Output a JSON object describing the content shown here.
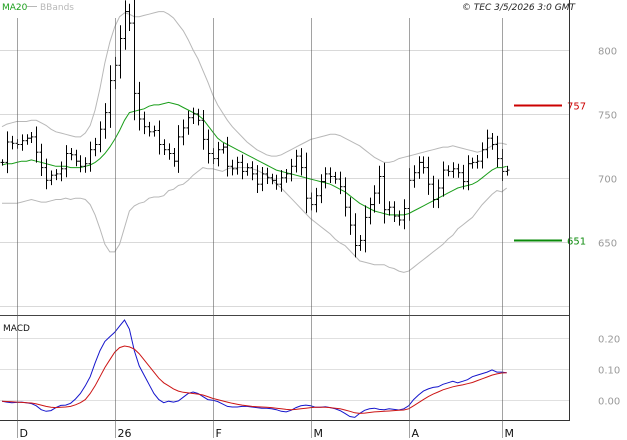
{
  "legend": {
    "ma_label": "MA20",
    "bb_label": "BBands",
    "ma_color": "#1a9e1a",
    "bb_color": "#b8b8b8"
  },
  "header_info": "© TEC 3/5/2026 3:0 GMT",
  "macd_label": "MACD",
  "chart_data": [
    {
      "type": "candlestick",
      "title": "",
      "ylim": [
        595,
        825
      ],
      "y_ticks": [
        "800",
        "750",
        "700",
        "650"
      ],
      "y_tick_values": [
        800,
        750,
        700,
        650
      ],
      "x_ticks": [
        "D",
        "26",
        "F",
        "M",
        "A",
        "M"
      ],
      "x_tick_index": [
        4,
        24,
        44,
        64,
        84,
        103
      ],
      "grid": true,
      "levels": [
        {
          "label": "757",
          "value": 757,
          "color": "#cc0000"
        },
        {
          "label": "651",
          "value": 651,
          "color": "#0a8a0a"
        }
      ],
      "series": [
        {
          "name": "Price",
          "values": [
            712,
            728,
            727,
            726,
            729,
            731,
            732,
            720,
            708,
            698,
            702,
            703,
            707,
            719,
            718,
            713,
            709,
            711,
            722,
            726,
            738,
            751,
            776,
            788,
            809,
            830,
            821,
            766,
            746,
            740,
            736,
            737,
            726,
            722,
            719,
            713,
            732,
            739,
            747,
            750,
            745,
            730,
            719,
            715,
            722,
            724,
            709,
            707,
            712,
            705,
            708,
            703,
            695,
            703,
            700,
            698,
            695,
            700,
            703,
            709,
            717,
            708,
            684,
            679,
            686,
            697,
            703,
            701,
            699,
            693,
            677,
            663,
            647,
            651,
            669,
            679,
            688,
            701,
            675,
            677,
            670,
            667,
            676,
            698,
            704,
            712,
            708,
            695,
            683,
            692,
            706,
            705,
            707,
            704,
            697,
            711,
            712,
            713,
            722,
            731,
            726,
            715,
            705,
            706
          ]
        },
        {
          "name": "MA20",
          "values": [
            710,
            711,
            711,
            712,
            713,
            713,
            714,
            713,
            712,
            711,
            710,
            709,
            709,
            709,
            708,
            708,
            708,
            709,
            710,
            712,
            715,
            719,
            724,
            730,
            737,
            745,
            751,
            752,
            753,
            754,
            756,
            757,
            757,
            758,
            759,
            758,
            757,
            755,
            753,
            751,
            749,
            746,
            741,
            736,
            731,
            728,
            726,
            724,
            722,
            720,
            718,
            716,
            714,
            712,
            710,
            708,
            706,
            705,
            704,
            703,
            702,
            701,
            700,
            699,
            698,
            697,
            696,
            695,
            693,
            691,
            689,
            686,
            683,
            680,
            678,
            676,
            674,
            673,
            672,
            671,
            671,
            671,
            671,
            672,
            674,
            676,
            678,
            680,
            682,
            684,
            686,
            688,
            690,
            692,
            693,
            694,
            695,
            697,
            700,
            703,
            706,
            708,
            708,
            709
          ]
        },
        {
          "name": "BB Upper",
          "values": [
            740,
            742,
            743,
            744,
            744,
            744,
            745,
            745,
            743,
            741,
            738,
            736,
            735,
            734,
            733,
            732,
            732,
            735,
            741,
            753,
            770,
            790,
            806,
            818,
            826,
            829,
            828,
            826,
            826,
            827,
            828,
            829,
            830,
            830,
            828,
            825,
            820,
            815,
            808,
            800,
            793,
            784,
            775,
            765,
            757,
            751,
            745,
            740,
            736,
            732,
            728,
            725,
            722,
            720,
            718,
            717,
            717,
            718,
            720,
            722,
            724,
            726,
            728,
            730,
            731,
            732,
            733,
            734,
            734,
            733,
            731,
            729,
            727,
            725,
            722,
            719,
            716,
            714,
            712,
            712,
            713,
            715,
            716,
            717,
            718,
            719,
            720,
            721,
            722,
            723,
            724,
            724,
            725,
            724,
            723,
            722,
            721,
            720,
            721,
            723,
            725,
            727,
            727,
            726
          ]
        },
        {
          "name": "BB Lower",
          "values": [
            680,
            680,
            680,
            680,
            681,
            682,
            683,
            682,
            681,
            681,
            682,
            683,
            683,
            684,
            683,
            684,
            684,
            683,
            679,
            671,
            660,
            648,
            642,
            642,
            648,
            661,
            674,
            678,
            680,
            681,
            684,
            685,
            685,
            686,
            690,
            691,
            694,
            695,
            698,
            702,
            705,
            708,
            707,
            707,
            706,
            705,
            707,
            708,
            708,
            708,
            708,
            707,
            706,
            704,
            702,
            699,
            695,
            692,
            688,
            684,
            680,
            676,
            672,
            668,
            665,
            662,
            659,
            656,
            652,
            649,
            647,
            643,
            639,
            635,
            634,
            633,
            632,
            632,
            632,
            630,
            629,
            627,
            626,
            627,
            630,
            633,
            636,
            639,
            642,
            645,
            648,
            652,
            655,
            660,
            663,
            666,
            669,
            674,
            679,
            683,
            687,
            690,
            689,
            692
          ]
        }
      ]
    },
    {
      "type": "line",
      "title": "",
      "ylim": [
        -0.06,
        0.26
      ],
      "y_ticks": [
        "0.20",
        "0.10",
        "0.00"
      ],
      "y_tick_values": [
        0.2,
        0.1,
        0.0
      ],
      "grid": true,
      "series": [
        {
          "name": "MACD",
          "color": "#1515cc",
          "values": [
            -0.005,
            -0.008,
            -0.01,
            -0.009,
            -0.008,
            -0.01,
            -0.013,
            -0.02,
            -0.033,
            -0.038,
            -0.036,
            -0.026,
            -0.019,
            -0.018,
            -0.012,
            0.002,
            0.02,
            0.045,
            0.075,
            0.12,
            0.16,
            0.19,
            0.205,
            0.22,
            0.24,
            0.26,
            0.23,
            0.16,
            0.11,
            0.08,
            0.05,
            0.02,
            0.0,
            -0.01,
            -0.005,
            -0.008,
            -0.004,
            0.008,
            0.02,
            0.025,
            0.02,
            0.01,
            0.0,
            -0.002,
            -0.006,
            -0.014,
            -0.022,
            -0.024,
            -0.024,
            -0.022,
            -0.022,
            -0.024,
            -0.026,
            -0.028,
            -0.028,
            -0.03,
            -0.033,
            -0.038,
            -0.04,
            -0.035,
            -0.026,
            -0.02,
            -0.018,
            -0.02,
            -0.025,
            -0.025,
            -0.023,
            -0.026,
            -0.03,
            -0.036,
            -0.045,
            -0.055,
            -0.058,
            -0.045,
            -0.035,
            -0.03,
            -0.028,
            -0.032,
            -0.033,
            -0.03,
            -0.032,
            -0.034,
            -0.03,
            -0.02,
            0.0,
            0.015,
            0.028,
            0.035,
            0.04,
            0.042,
            0.05,
            0.055,
            0.06,
            0.055,
            0.06,
            0.065,
            0.075,
            0.08,
            0.085,
            0.09,
            0.097,
            0.09,
            0.09,
            0.088
          ]
        },
        {
          "name": "Signal",
          "color": "#cc1515",
          "values": [
            -0.005,
            -0.006,
            -0.007,
            -0.008,
            -0.009,
            -0.01,
            -0.011,
            -0.014,
            -0.018,
            -0.022,
            -0.025,
            -0.026,
            -0.025,
            -0.024,
            -0.022,
            -0.017,
            -0.01,
            0.0,
            0.02,
            0.045,
            0.075,
            0.105,
            0.13,
            0.155,
            0.17,
            0.175,
            0.172,
            0.165,
            0.15,
            0.13,
            0.11,
            0.09,
            0.07,
            0.055,
            0.045,
            0.035,
            0.028,
            0.024,
            0.022,
            0.02,
            0.018,
            0.015,
            0.01,
            0.004,
            0.0,
            -0.004,
            -0.008,
            -0.012,
            -0.015,
            -0.018,
            -0.02,
            -0.022,
            -0.023,
            -0.024,
            -0.025,
            -0.026,
            -0.028,
            -0.03,
            -0.032,
            -0.033,
            -0.032,
            -0.03,
            -0.028,
            -0.026,
            -0.025,
            -0.025,
            -0.025,
            -0.026,
            -0.028,
            -0.03,
            -0.034,
            -0.038,
            -0.043,
            -0.045,
            -0.044,
            -0.042,
            -0.04,
            -0.039,
            -0.038,
            -0.037,
            -0.036,
            -0.035,
            -0.034,
            -0.03,
            -0.02,
            -0.01,
            0.0,
            0.01,
            0.018,
            0.025,
            0.032,
            0.037,
            0.042,
            0.045,
            0.048,
            0.052,
            0.056,
            0.062,
            0.068,
            0.074,
            0.08,
            0.084,
            0.087,
            0.088
          ]
        }
      ]
    }
  ]
}
